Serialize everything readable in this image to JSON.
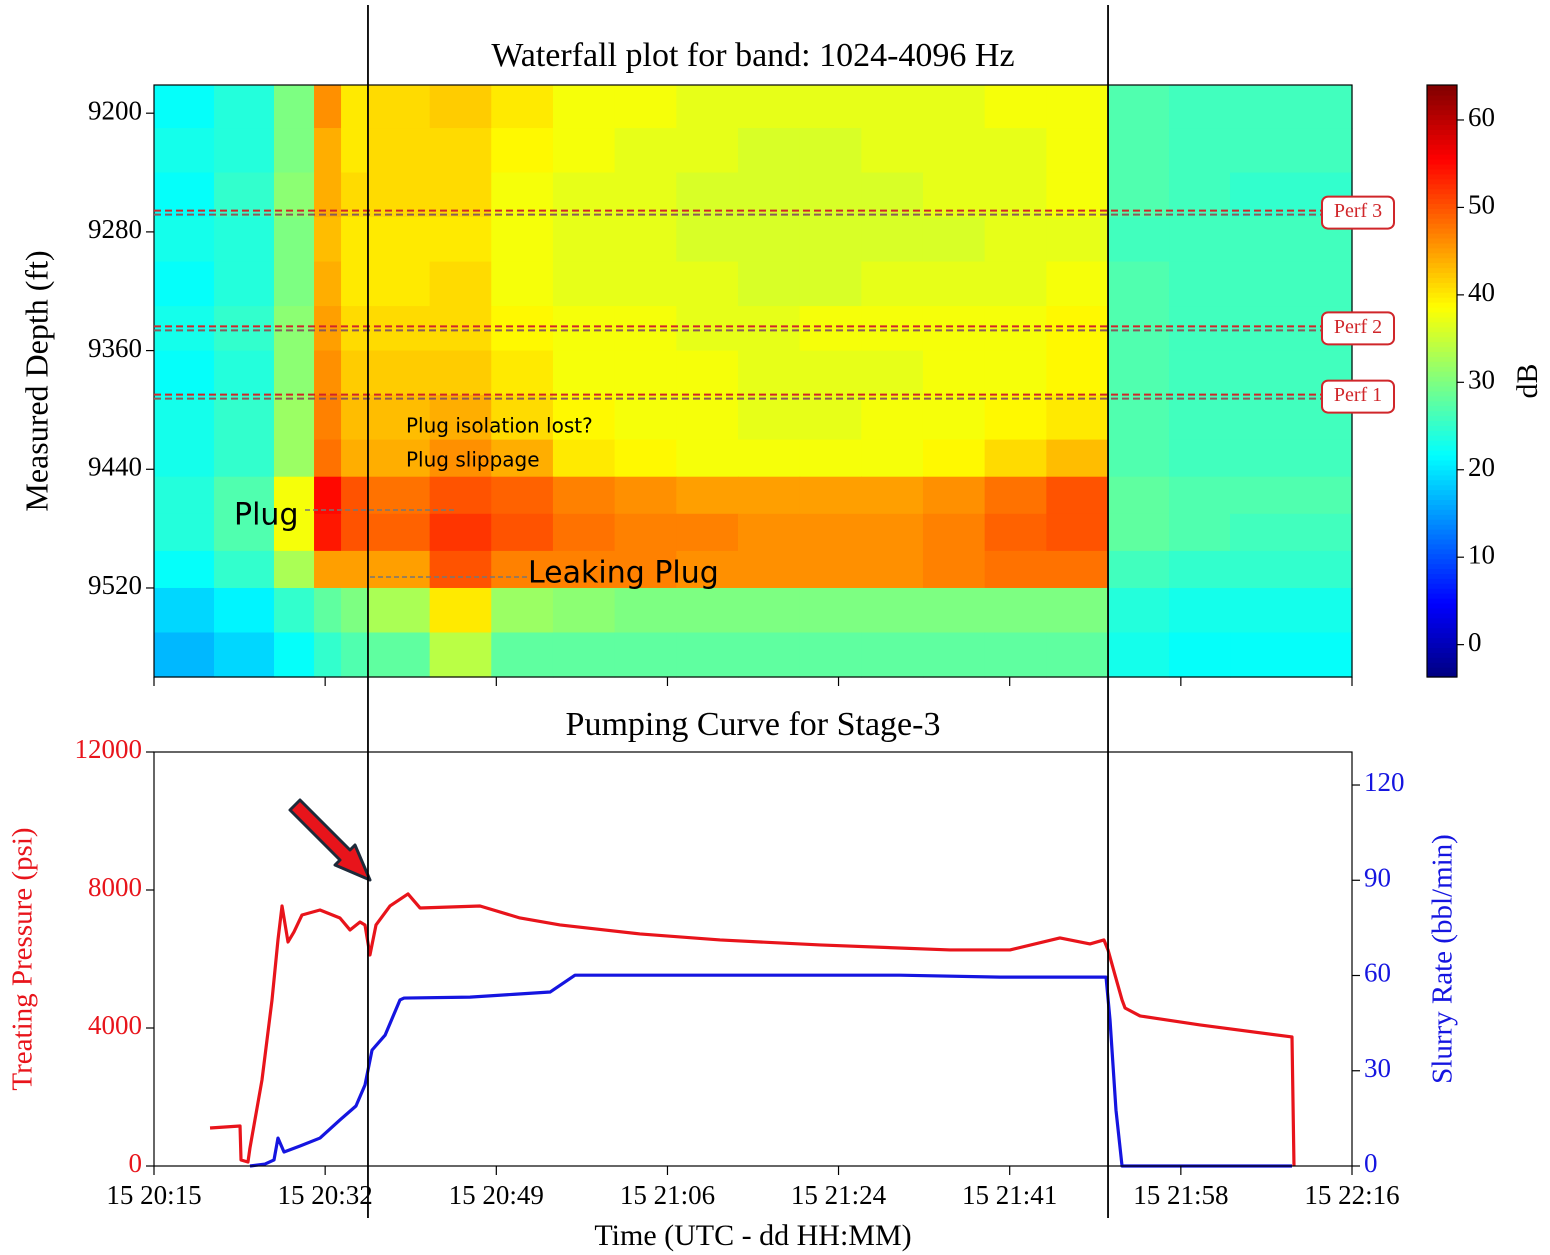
{
  "chart_data": [
    {
      "type": "heatmap",
      "title": "Waterfall plot for band: 1024-4096 Hz",
      "ylabel": "Measured Depth (ft)",
      "colorbar_label": "dB",
      "colormap": "jet",
      "xlim": [
        1215.3,
        1335.9
      ],
      "xticks": [
        1215.3,
        1232.53,
        1249.76,
        1266.99,
        1284.21,
        1301.44,
        1318.67,
        1335.9
      ],
      "ylim": [
        9181,
        9580
      ],
      "y_inverted": true,
      "yticks": [
        9200,
        9280,
        9360,
        9440,
        9520
      ],
      "clim": [
        -3.7,
        64
      ],
      "cticks": [
        0,
        10,
        20,
        30,
        40,
        50,
        60
      ],
      "x_edges": [
        1215.3,
        1221.34,
        1227.38,
        1231.41,
        1234.13,
        1236.84,
        1243.05,
        1249.25,
        1255.46,
        1261.67,
        1267.88,
        1274.09,
        1280.3,
        1286.5,
        1292.71,
        1298.92,
        1305.13,
        1311.34,
        1317.48,
        1323.62,
        1335.9
      ],
      "y_edges": [
        9181,
        9210,
        9240,
        9270,
        9300,
        9330,
        9360,
        9390,
        9420,
        9445,
        9470,
        9495,
        9520,
        9550,
        9580
      ],
      "z": [
        [
          22,
          24,
          30,
          46,
          40,
          41,
          42,
          40,
          38,
          38,
          37,
          37,
          37,
          37,
          37,
          38,
          38,
          27,
          26,
          26
        ],
        [
          23,
          24,
          30,
          44,
          40,
          41,
          41,
          39,
          38,
          37,
          37,
          36,
          36,
          37,
          37,
          37,
          38,
          27,
          26,
          26
        ],
        [
          22,
          25,
          31,
          44,
          41,
          41,
          41,
          38,
          37,
          37,
          36,
          36,
          36,
          36,
          37,
          37,
          38,
          27,
          26,
          25
        ],
        [
          23,
          24,
          30,
          43,
          40,
          40,
          40,
          38,
          37,
          37,
          36,
          36,
          36,
          36,
          36,
          37,
          37,
          26,
          26,
          26
        ],
        [
          22,
          24,
          30,
          44,
          40,
          40,
          41,
          38,
          37,
          37,
          37,
          36,
          36,
          37,
          37,
          37,
          38,
          27,
          26,
          26
        ],
        [
          23,
          25,
          31,
          45,
          41,
          41,
          41,
          39,
          38,
          38,
          37,
          37,
          38,
          38,
          38,
          38,
          39,
          27,
          26,
          26
        ],
        [
          22,
          24,
          31,
          46,
          42,
          42,
          42,
          40,
          38,
          38,
          38,
          37,
          37,
          37,
          38,
          38,
          39,
          27,
          26,
          26
        ],
        [
          23,
          25,
          32,
          47,
          43,
          43,
          44,
          41,
          39,
          38,
          38,
          37,
          37,
          38,
          38,
          39,
          40,
          27,
          26,
          26
        ],
        [
          23,
          25,
          32,
          48,
          44,
          44,
          46,
          44,
          40,
          39,
          38,
          38,
          38,
          38,
          39,
          41,
          43,
          27,
          26,
          26
        ],
        [
          24,
          27,
          38,
          55,
          50,
          48,
          50,
          49,
          47,
          46,
          45,
          45,
          45,
          45,
          46,
          48,
          50,
          28,
          27,
          27
        ],
        [
          24,
          27,
          38,
          54,
          50,
          49,
          52,
          50,
          48,
          47,
          47,
          46,
          46,
          46,
          47,
          49,
          50,
          28,
          27,
          26
        ],
        [
          22,
          25,
          33,
          45,
          45,
          45,
          50,
          47,
          47,
          47,
          46,
          46,
          46,
          46,
          47,
          48,
          48,
          26,
          25,
          25
        ],
        [
          19,
          21,
          25,
          28,
          30,
          33,
          40,
          32,
          31,
          30,
          30,
          30,
          30,
          30,
          30,
          30,
          30,
          24,
          23,
          23
        ],
        [
          17,
          19,
          22,
          25,
          27,
          28,
          34,
          28,
          28,
          28,
          28,
          28,
          28,
          28,
          28,
          28,
          28,
          23,
          22,
          22
        ]
      ],
      "perfs": [
        {
          "label": "Perf 3",
          "depth": 9267
        },
        {
          "label": "Perf 2",
          "depth": 9345
        },
        {
          "label": "Perf 1",
          "depth": 9391
        }
      ],
      "annotations": [
        "Plug isolation lost?",
        "Plug slippage",
        "Plug",
        "Leaking Plug"
      ]
    },
    {
      "type": "line",
      "title": "Pumping Curve for Stage-3",
      "xlabel": "Time (UTC - dd HH:MM)",
      "ylabel": "Treating Pressure (psi)",
      "y2label": "Slurry Rate (bbl/min)",
      "ylabel_color": "#e8141b",
      "y2label_color": "#1515e0",
      "xlim": [
        1215.3,
        1335.9
      ],
      "xticks": [
        {
          "value": 1215.3,
          "label": "15 20:15"
        },
        {
          "value": 1232.53,
          "label": "15 20:32"
        },
        {
          "value": 1249.76,
          "label": "15 20:49"
        },
        {
          "value": 1266.99,
          "label": "15 21:06"
        },
        {
          "value": 1284.21,
          "label": "15 21:24"
        },
        {
          "value": 1301.44,
          "label": "15 21:41"
        },
        {
          "value": 1318.67,
          "label": "15 21:58"
        },
        {
          "value": 1335.9,
          "label": "15 22:16"
        }
      ],
      "ylim": [
        0,
        12000
      ],
      "yticks": [
        0,
        4000,
        8000,
        12000
      ],
      "y2lim": [
        0,
        130.4
      ],
      "y2ticks": [
        0,
        30,
        60,
        90,
        120
      ],
      "vlines": [
        1236.84,
        1311.34
      ],
      "series": [
        {
          "color": "#e8141b",
          "x": [
            1220.94,
            1223.96,
            1224.06,
            1224.76,
            1224.96,
            1226.17,
            1227.18,
            1227.78,
            1228.19,
            1228.79,
            1229.39,
            1230.2,
            1232.01,
            1234.02,
            1235.03,
            1236.04,
            1236.54,
            1237.04,
            1237.65,
            1239.06,
            1240.87,
            1242.08,
            1248.12,
            1252.14,
            1256.17,
            1264.22,
            1272.28,
            1282.34,
            1295.43,
            1301.47,
            1306.5,
            1309.52,
            1310.93,
            1311.34,
            1312.04,
            1312.75,
            1313.05,
            1314.56,
            1320.6,
            1329.86,
            1330.06
          ],
          "values": [
            1102,
            1160,
            174,
            116,
            522,
            2493,
            4812,
            6552,
            7537,
            6494,
            6784,
            7276,
            7421,
            7189,
            6842,
            7073,
            6987,
            6117,
            6987,
            7537,
            7885,
            7479,
            7537,
            7189,
            6987,
            6726,
            6552,
            6407,
            6262,
            6262,
            6610,
            6436,
            6552,
            6262,
            5537,
            4812,
            4580,
            4349,
            4088,
            3740,
            0
          ]
        },
        {
          "color": "#1515e0",
          "axis": "y2",
          "x": [
            1224.96,
            1226.47,
            1227.38,
            1227.78,
            1228.39,
            1230.0,
            1232.01,
            1234.02,
            1235.63,
            1236.54,
            1237.25,
            1238.56,
            1240.06,
            1240.47,
            1247.11,
            1251.64,
            1255.17,
            1257.68,
            1270.27,
            1290.4,
            1300.47,
            1311.14,
            1311.54,
            1312.14,
            1312.75,
            1329.86
          ],
          "values": [
            0,
            0.6,
            1.9,
            8.8,
            4.4,
            6.3,
            8.8,
            14.5,
            18.9,
            25.5,
            36.5,
            41.2,
            52.3,
            52.9,
            53.2,
            54.1,
            54.8,
            60.1,
            60.1,
            60.1,
            59.5,
            59.5,
            46.0,
            17.6,
            0,
            0
          ]
        }
      ]
    }
  ]
}
